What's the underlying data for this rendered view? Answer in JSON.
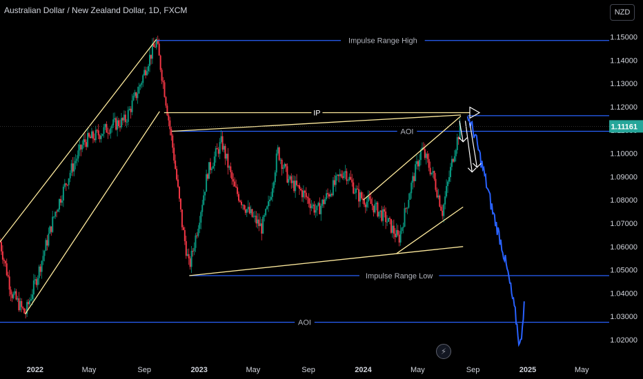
{
  "header": {
    "title": "Australian Dollar / New Zealand Dollar, 1D, FXCM",
    "currency_button": "NZD"
  },
  "colors": {
    "background": "#000000",
    "candle_up": "#089981",
    "candle_down": "#f23645",
    "level_line": "#2962ff",
    "drawing": "#ffeb9e",
    "projection": "#2962ff",
    "price_badge": "#26a69a",
    "axis_text": "#d1d4dc"
  },
  "icons": {
    "bolt": "lightning-bolt-icon"
  },
  "chart_data": {
    "type": "candlestick",
    "symbol": "AUDNZD",
    "interval": "1D",
    "last_price": "1.11161",
    "y_axis": {
      "range": [
        1.012,
        1.157
      ],
      "ticks": [
        "1.15000",
        "1.14000",
        "1.13000",
        "1.12000",
        "1.11000",
        "1.10000",
        "1.09000",
        "1.08000",
        "1.07000",
        "1.06000",
        "1.05000",
        "1.04000",
        "1.03000",
        "1.02000"
      ]
    },
    "x_axis": {
      "start": "2021-10-15",
      "end": "2025-07-01",
      "ticks": [
        {
          "label": "2022",
          "date": "2022-01-01",
          "bold": true
        },
        {
          "label": "May",
          "date": "2022-05-01",
          "bold": false
        },
        {
          "label": "Sep",
          "date": "2022-09-01",
          "bold": false
        },
        {
          "label": "2023",
          "date": "2023-01-01",
          "bold": true
        },
        {
          "label": "May",
          "date": "2023-05-01",
          "bold": false
        },
        {
          "label": "Sep",
          "date": "2023-09-01",
          "bold": false
        },
        {
          "label": "2024",
          "date": "2024-01-01",
          "bold": true
        },
        {
          "label": "May",
          "date": "2024-05-01",
          "bold": false
        },
        {
          "label": "Sep",
          "date": "2024-09-01",
          "bold": false
        },
        {
          "label": "2025",
          "date": "2025-01-01",
          "bold": true
        },
        {
          "label": "May",
          "date": "2025-05-01",
          "bold": false
        }
      ]
    },
    "price_path": [
      [
        "2021-10-15",
        1.062
      ],
      [
        "2021-11-10",
        1.04
      ],
      [
        "2021-12-10",
        1.031
      ],
      [
        "2022-01-10",
        1.05
      ],
      [
        "2022-02-15",
        1.075
      ],
      [
        "2022-03-20",
        1.092
      ],
      [
        "2022-04-20",
        1.105
      ],
      [
        "2022-05-20",
        1.108
      ],
      [
        "2022-06-20",
        1.112
      ],
      [
        "2022-07-20",
        1.114
      ],
      [
        "2022-08-20",
        1.128
      ],
      [
        "2022-09-10",
        1.14
      ],
      [
        "2022-09-28",
        1.148
      ],
      [
        "2022-10-15",
        1.128
      ],
      [
        "2022-11-05",
        1.1
      ],
      [
        "2022-11-25",
        1.068
      ],
      [
        "2022-12-10",
        1.051
      ],
      [
        "2022-12-28",
        1.068
      ],
      [
        "2023-01-20",
        1.092
      ],
      [
        "2023-02-20",
        1.105
      ],
      [
        "2023-03-20",
        1.085
      ],
      [
        "2023-04-20",
        1.075
      ],
      [
        "2023-05-20",
        1.068
      ],
      [
        "2023-06-05",
        1.078
      ],
      [
        "2023-06-25",
        1.101
      ],
      [
        "2023-07-20",
        1.088
      ],
      [
        "2023-08-20",
        1.083
      ],
      [
        "2023-09-20",
        1.075
      ],
      [
        "2023-10-20",
        1.084
      ],
      [
        "2023-11-20",
        1.093
      ],
      [
        "2023-12-20",
        1.082
      ],
      [
        "2024-01-20",
        1.078
      ],
      [
        "2024-02-20",
        1.072
      ],
      [
        "2024-03-20",
        1.063
      ],
      [
        "2024-04-15",
        1.085
      ],
      [
        "2024-05-10",
        1.102
      ],
      [
        "2024-06-05",
        1.09
      ],
      [
        "2024-06-25",
        1.075
      ],
      [
        "2024-07-20",
        1.1
      ],
      [
        "2024-08-05",
        1.112
      ]
    ],
    "projection_path": [
      [
        "2024-08-20",
        1.116
      ],
      [
        "2024-09-05",
        1.108
      ],
      [
        "2024-09-25",
        1.092
      ],
      [
        "2024-10-15",
        1.075
      ],
      [
        "2024-11-05",
        1.06
      ],
      [
        "2024-11-20",
        1.046
      ],
      [
        "2024-12-05",
        1.03
      ],
      [
        "2024-12-15",
        1.016
      ],
      [
        "2024-12-25",
        1.038
      ]
    ],
    "horizontal_levels": [
      {
        "name": "impulse-range-high",
        "label": "Impulse Range High",
        "price": 1.1485,
        "from": "2022-09-28",
        "color": "#2962ff"
      },
      {
        "name": "aoi-upper",
        "label": "AOI",
        "price": 1.1162,
        "from": "2024-08-20",
        "color": "#2962ff"
      },
      {
        "name": "aoi-mid",
        "label": "AOI",
        "price": 1.1095,
        "from": "2022-11-01",
        "color": "#2962ff"
      },
      {
        "name": "impulse-range-low",
        "label": "Impulse Range Low",
        "price": 1.0475,
        "from": "2022-12-10",
        "color": "#2962ff"
      },
      {
        "name": "aoi-lower",
        "label": "AOI",
        "price": 1.0275,
        "from": "2021-10-15",
        "color": "#2962ff"
      }
    ],
    "ip_arrow": {
      "label": "IP",
      "price": 1.1175,
      "from": "2022-10-15",
      "to": "2024-08-25"
    },
    "trendlines": [
      {
        "name": "channel-lower",
        "from": [
          "2021-12-10",
          1.031
        ],
        "to": [
          "2022-10-05",
          1.118
        ]
      },
      {
        "name": "channel-upper",
        "from": [
          "2021-10-15",
          1.062
        ],
        "to": [
          "2022-09-28",
          1.149
        ]
      },
      {
        "name": "triangle-top",
        "from": [
          "2022-11-01",
          1.1095
        ],
        "to": [
          "2024-08-05",
          1.1165
        ]
      },
      {
        "name": "triangle-bottom",
        "from": [
          "2022-12-10",
          1.0475
        ],
        "to": [
          "2024-08-10",
          1.06
        ]
      },
      {
        "name": "wedge-upper",
        "from": [
          "2024-01-01",
          1.08
        ],
        "to": [
          "2024-08-05",
          1.116
        ]
      },
      {
        "name": "wedge-lower",
        "from": [
          "2024-03-15",
          1.057
        ],
        "to": [
          "2024-08-10",
          1.077
        ]
      }
    ],
    "down_arrows": [
      {
        "from": [
          "2024-08-02",
          1.114
        ],
        "to": [
          "2024-08-10",
          1.105
        ]
      },
      {
        "from": [
          "2024-08-15",
          1.114
        ],
        "to": [
          "2024-08-30",
          1.092
        ]
      },
      {
        "from": [
          "2024-08-25",
          1.113
        ],
        "to": [
          "2024-09-10",
          1.094
        ]
      }
    ]
  }
}
